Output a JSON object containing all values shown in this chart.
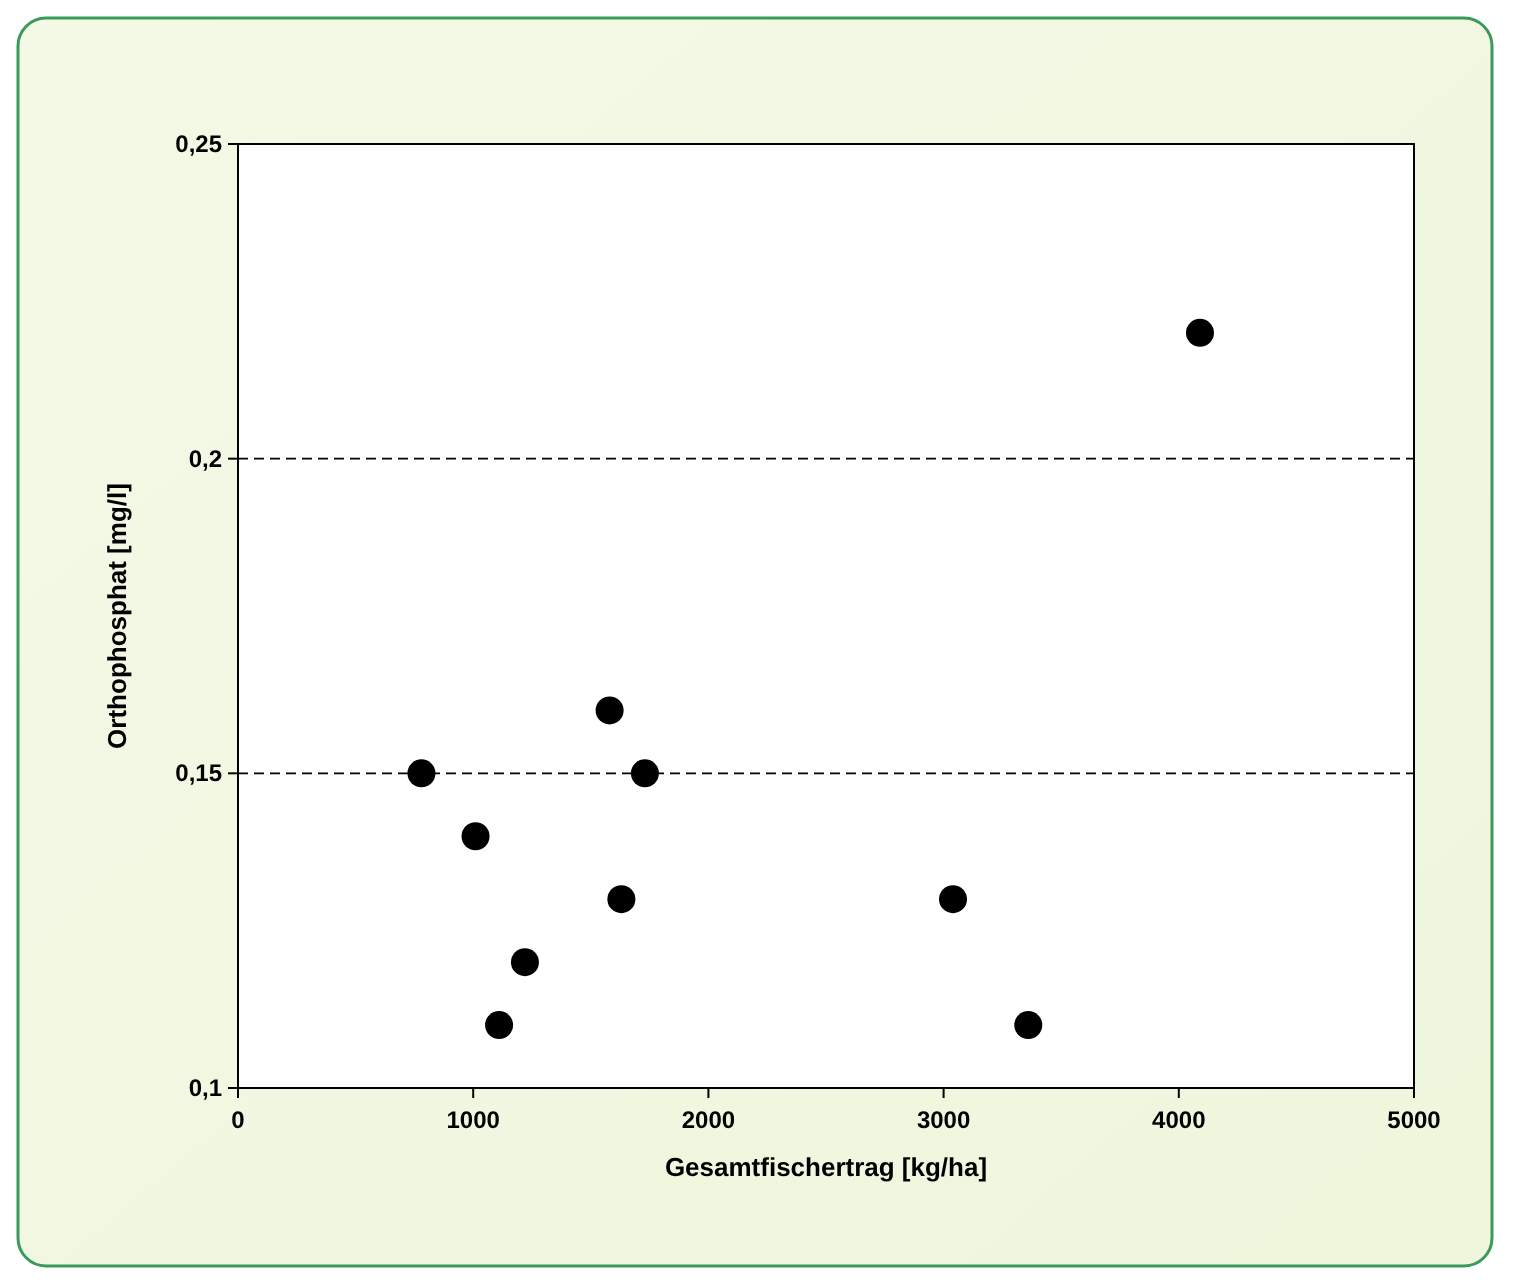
{
  "chart_data": {
    "type": "scatter",
    "xlabel": "Gesamtfischertrag [kg/ha]",
    "ylabel": "Orthophosphat [mg/l]",
    "x": [
      780,
      1010,
      1110,
      1220,
      1580,
      1630,
      1730,
      3040,
      3360,
      4090
    ],
    "values": [
      0.15,
      0.14,
      0.11,
      0.12,
      0.16,
      0.13,
      0.15,
      0.13,
      0.11,
      0.22
    ],
    "color": "#000000",
    "marker": "circle",
    "xlim": [
      0,
      5000
    ],
    "xticks": [
      0,
      1000,
      2000,
      3000,
      4000,
      5000
    ],
    "ylim": [
      0.1,
      0.25
    ],
    "yticks": [
      {
        "value": 0.1,
        "label": "0,1"
      },
      {
        "value": 0.15,
        "label": "0,15"
      },
      {
        "value": 0.2,
        "label": "0,2"
      },
      {
        "value": 0.25,
        "label": "0,25"
      }
    ],
    "grid": "y"
  }
}
